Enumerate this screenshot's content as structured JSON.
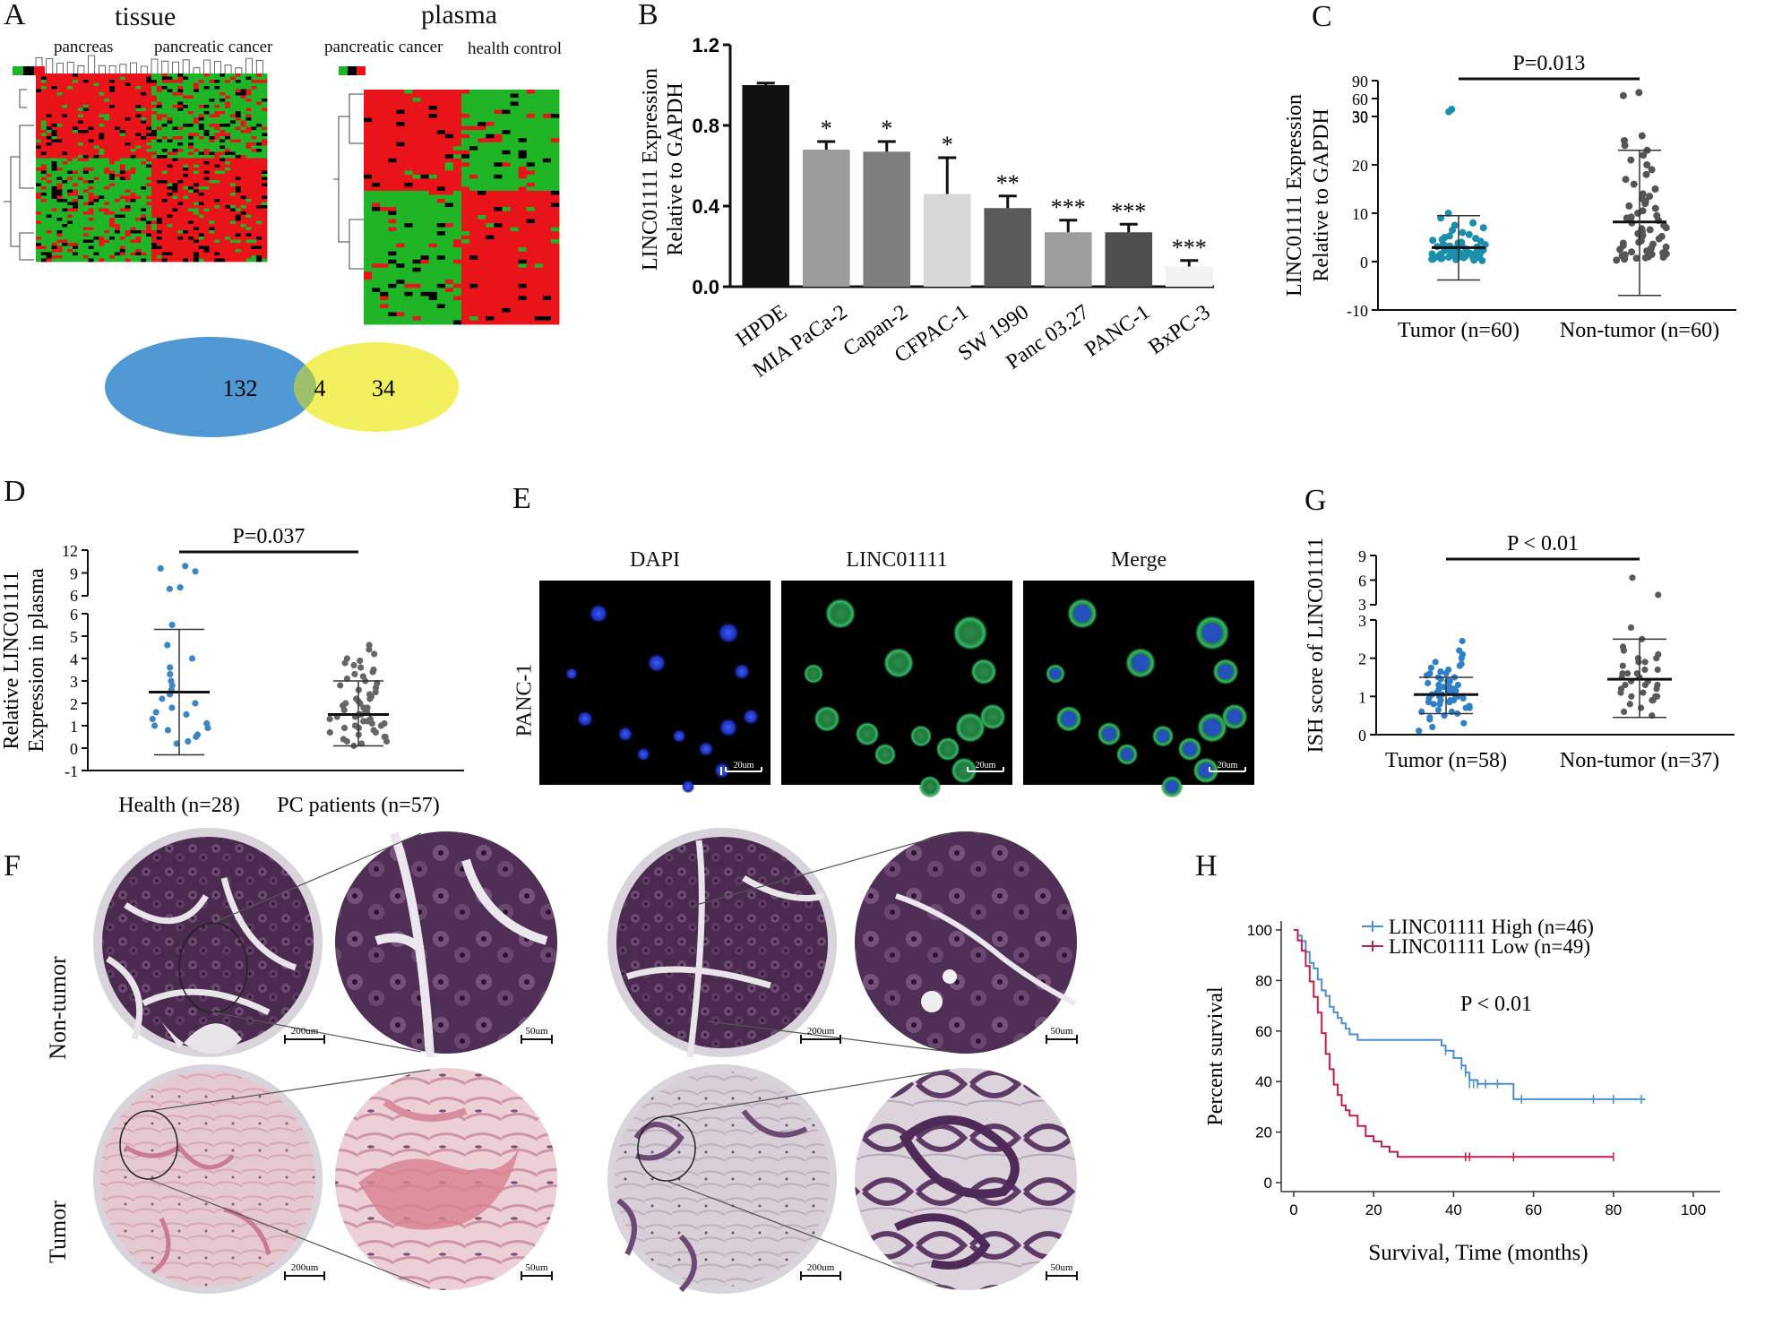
{
  "panels": {
    "A": {
      "letter": "A",
      "tissue_title": "tissue",
      "plasma_title": "plasma",
      "tissue_groups": [
        "pancreas",
        "pancreatic cancer"
      ],
      "plasma_groups": [
        "pancreatic cancer",
        "health control"
      ],
      "colors": {
        "up": "#e8141a",
        "down": "#1fb527",
        "mid": "#000000"
      },
      "venn": {
        "left_only": "132",
        "overlap": "4",
        "right_only": "34",
        "left_color": "#4f98d4",
        "right_color": "#f3f060",
        "overlap_color": "#9fc06a"
      }
    },
    "B": {
      "letter": "B"
    },
    "C": {
      "letter": "C"
    },
    "D": {
      "letter": "D"
    },
    "E": {
      "letter": "E",
      "row_label": "PANC-1",
      "column_titles": [
        "DAPI",
        "LINC01111",
        "Merge"
      ],
      "scale_bar": "20um"
    },
    "F": {
      "letter": "F",
      "row_labels": [
        "Non-tumor",
        "Tumor"
      ],
      "scale_overview": "200um",
      "scale_zoom": "50um"
    },
    "G": {
      "letter": "G"
    },
    "H": {
      "letter": "H"
    }
  },
  "chart_data": [
    {
      "id": "B",
      "type": "bar",
      "ylabel_lines": [
        "LINC01111 Expression",
        "Relative to GAPDH"
      ],
      "categories": [
        "HPDE",
        "MIA PaCa-2",
        "Capan-2",
        "CFPAC-1",
        "SW 1990",
        "Panc 03.27",
        "PANC-1",
        "BxPC-3"
      ],
      "values": [
        1.0,
        0.68,
        0.67,
        0.46,
        0.39,
        0.27,
        0.27,
        0.1
      ],
      "errors": [
        0.01,
        0.04,
        0.05,
        0.18,
        0.06,
        0.06,
        0.04,
        0.03
      ],
      "significance": [
        "",
        "*",
        "*",
        "*",
        "**",
        "***",
        "***",
        "***"
      ],
      "bar_colors": [
        "#111111",
        "#9b9b9b",
        "#7e7e7e",
        "#d8d8d8",
        "#5a5a5a",
        "#9d9d9d",
        "#4f4f4f",
        "#f2f2f2"
      ],
      "ylim": [
        0,
        1.2
      ],
      "yticks": [
        "0.0",
        "0.4",
        "0.8",
        "1.2"
      ]
    },
    {
      "id": "C",
      "type": "scatter",
      "ylabel_lines": [
        "LINC01111 Expression",
        "Relative to GAPDH"
      ],
      "categories": [
        "Tumor (n=60)",
        "Non-tumor (n=60)"
      ],
      "pvalue": "P=0.013",
      "yticks_lower": [
        "-10",
        "0",
        "10",
        "20",
        "30"
      ],
      "yticks_upper": [
        "30",
        "60",
        "90"
      ],
      "axis_break": 30,
      "groups": [
        {
          "name": "Tumor (n=60)",
          "color": "#1b8eab",
          "mean": 2.9,
          "sd_low": -3.8,
          "sd_high": 9.5,
          "points": [
            0.2,
            0.3,
            0.4,
            0.5,
            0.5,
            0.6,
            0.7,
            0.8,
            0.8,
            0.9,
            1.0,
            1.0,
            1.1,
            1.2,
            1.3,
            1.3,
            1.4,
            1.5,
            1.6,
            1.7,
            1.8,
            1.9,
            2.0,
            2.1,
            2.2,
            2.3,
            2.4,
            2.5,
            2.6,
            2.7,
            2.8,
            2.9,
            3.0,
            3.1,
            3.2,
            3.4,
            3.5,
            3.6,
            3.8,
            4.0,
            4.2,
            4.4,
            4.6,
            4.8,
            5.0,
            5.3,
            5.6,
            6.0,
            6.5,
            7.0,
            7.5,
            8.0,
            9.0,
            10.0,
            1.5,
            0.9,
            2.2,
            3.3,
            38.0,
            42.0
          ]
        },
        {
          "name": "Non-tumor (n=60)",
          "color": "#555555",
          "mean": 8.2,
          "sd_low": -7.0,
          "sd_high": 23.0,
          "points": [
            0.3,
            0.5,
            0.7,
            0.9,
            1.0,
            1.2,
            1.4,
            1.6,
            1.8,
            2.0,
            2.2,
            2.5,
            2.8,
            3.0,
            3.3,
            3.6,
            4.0,
            4.3,
            4.7,
            5.0,
            5.4,
            5.8,
            6.2,
            6.6,
            7.0,
            7.5,
            8.0,
            8.5,
            9.0,
            9.5,
            10.0,
            10.5,
            11.0,
            11.5,
            12.0,
            12.5,
            13.0,
            13.5,
            14.0,
            15.0,
            16.0,
            17.0,
            18.0,
            19.0,
            20.0,
            21.0,
            22.0,
            23.0,
            24.0,
            25.0,
            26.0,
            0.8,
            1.5,
            2.6,
            3.8,
            5.2,
            6.8,
            9.2,
            65.0,
            70.0
          ]
        }
      ]
    },
    {
      "id": "D",
      "type": "scatter",
      "ylabel_lines": [
        "Relative LINC01111",
        "Expression in plasma"
      ],
      "categories": [
        "Health (n=28)",
        "PC patients (n=57)"
      ],
      "pvalue": "P=0.037",
      "yticks_lower": [
        "-1",
        "0",
        "1",
        "2",
        "3",
        "4",
        "5",
        "6"
      ],
      "yticks_upper": [
        "6",
        "9",
        "12"
      ],
      "axis_break": 6,
      "groups": [
        {
          "name": "Health (n=28)",
          "color": "#3c86c4",
          "mean": 2.5,
          "sd_low": -0.3,
          "sd_high": 5.3,
          "points": [
            0.2,
            0.3,
            0.5,
            0.6,
            0.8,
            0.9,
            1.0,
            1.1,
            1.3,
            1.5,
            1.6,
            1.8,
            2.0,
            2.2,
            2.4,
            2.6,
            2.8,
            3.0,
            3.3,
            3.6,
            4.0,
            4.6,
            5.5,
            6.9,
            7.1,
            9.2,
            9.6,
            9.9
          ]
        },
        {
          "name": "PC patients (n=57)",
          "color": "#666666",
          "mean": 1.5,
          "sd_low": 0.1,
          "sd_high": 3.0,
          "points": [
            0.1,
            0.2,
            0.3,
            0.3,
            0.4,
            0.5,
            0.5,
            0.6,
            0.7,
            0.7,
            0.8,
            0.9,
            0.9,
            1.0,
            1.0,
            1.1,
            1.1,
            1.2,
            1.2,
            1.3,
            1.3,
            1.4,
            1.4,
            1.5,
            1.5,
            1.6,
            1.6,
            1.7,
            1.8,
            1.8,
            1.9,
            2.0,
            2.0,
            2.1,
            2.2,
            2.2,
            2.3,
            2.4,
            2.5,
            2.6,
            2.7,
            2.8,
            2.9,
            3.0,
            3.1,
            3.2,
            3.3,
            3.4,
            3.5,
            3.6,
            3.7,
            3.8,
            3.9,
            4.0,
            4.2,
            4.4,
            4.6
          ]
        }
      ]
    },
    {
      "id": "G",
      "type": "scatter",
      "ylabel_lines": [
        "ISH score of LINC01111"
      ],
      "categories": [
        "Tumor (n=58)",
        "Non-tumor (n=37)"
      ],
      "pvalue": "P < 0.01",
      "yticks_lower": [
        "0",
        "1",
        "2",
        "3"
      ],
      "yticks_upper": [
        "3",
        "6",
        "9"
      ],
      "axis_break": 3,
      "groups": [
        {
          "name": "Tumor (n=58)",
          "color": "#2f80c9",
          "mean": 1.05,
          "sd_low": 0.55,
          "sd_high": 1.5,
          "points": [
            0.1,
            0.2,
            0.3,
            0.4,
            0.45,
            0.5,
            0.55,
            0.6,
            0.65,
            0.7,
            0.7,
            0.75,
            0.8,
            0.8,
            0.85,
            0.85,
            0.9,
            0.9,
            0.95,
            0.95,
            1.0,
            1.0,
            1.0,
            1.05,
            1.05,
            1.1,
            1.1,
            1.1,
            1.15,
            1.15,
            1.2,
            1.2,
            1.25,
            1.25,
            1.3,
            1.3,
            1.35,
            1.4,
            1.4,
            1.45,
            1.5,
            1.5,
            1.55,
            1.6,
            1.6,
            1.65,
            1.7,
            1.75,
            1.8,
            1.85,
            1.9,
            2.0,
            2.1,
            2.2,
            2.45,
            0.6,
            0.9,
            1.2
          ]
        },
        {
          "name": "Non-tumor (n=37)",
          "color": "#5a5a5a",
          "mean": 1.45,
          "sd_low": 0.45,
          "sd_high": 2.5,
          "points": [
            0.5,
            0.6,
            0.7,
            0.8,
            0.9,
            1.0,
            1.0,
            1.1,
            1.1,
            1.2,
            1.2,
            1.3,
            1.3,
            1.4,
            1.4,
            1.5,
            1.5,
            1.6,
            1.6,
            1.7,
            1.7,
            1.8,
            1.9,
            2.0,
            2.0,
            2.1,
            2.2,
            2.3,
            2.5,
            2.8,
            1.0,
            1.3,
            1.6,
            0.9,
            1.9,
            4.2,
            6.3
          ]
        }
      ]
    },
    {
      "id": "H",
      "type": "line",
      "xlabel": "Survival, Time (months)",
      "ylabel": "Percent survival",
      "pvalue": "P < 0.01",
      "xlim": [
        0,
        100
      ],
      "ylim": [
        0,
        100
      ],
      "xticks": [
        "0",
        "20",
        "40",
        "60",
        "80",
        "100"
      ],
      "yticks": [
        "0",
        "20",
        "40",
        "60",
        "80",
        "100"
      ],
      "series": [
        {
          "name": "LINC01111 High (n=46)",
          "color": "#4a8fd0",
          "x": [
            0,
            1,
            2,
            3,
            4,
            5,
            6,
            7,
            8,
            9,
            10,
            11,
            12,
            13,
            14,
            16,
            18,
            36,
            37,
            38,
            40,
            42,
            43,
            44,
            46,
            55,
            88
          ],
          "y": [
            100,
            97.8,
            95.6,
            91.3,
            87,
            84.8,
            80.4,
            76.1,
            73.9,
            69.6,
            67.4,
            65.2,
            63,
            60.9,
            58.7,
            56.5,
            56.5,
            56.5,
            54.3,
            52.2,
            49.3,
            46.4,
            43.5,
            40.6,
            39.1,
            33.0,
            33.0
          ],
          "censored": [
            [
              38,
              52.2
            ],
            [
              42,
              46.4
            ],
            [
              43,
              43.5
            ],
            [
              44,
              39.1
            ],
            [
              45,
              39.1
            ],
            [
              46,
              39.1
            ],
            [
              48,
              39.1
            ],
            [
              51,
              39.1
            ],
            [
              57,
              33.0
            ],
            [
              75,
              33.0
            ],
            [
              80,
              33.0
            ],
            [
              87,
              33.0
            ]
          ]
        },
        {
          "name": "LINC01111 Low (n=49)",
          "color": "#c41e4a",
          "x": [
            0,
            1,
            2,
            3,
            4,
            5,
            6,
            7,
            8,
            9,
            10,
            11,
            12,
            13,
            14,
            16,
            18,
            20,
            22,
            24,
            26,
            44,
            80
          ],
          "y": [
            100,
            95.9,
            91.8,
            85.7,
            79.6,
            73.5,
            67.3,
            59.2,
            51,
            44.9,
            38.8,
            34.7,
            30.6,
            28.6,
            26.5,
            22.4,
            18.4,
            16.3,
            14.3,
            12.2,
            10.2,
            10.2,
            10.2
          ],
          "censored": [
            [
              43,
              10.2
            ],
            [
              44,
              10.2
            ],
            [
              55,
              10.2
            ],
            [
              80,
              10.2
            ]
          ]
        }
      ]
    }
  ]
}
